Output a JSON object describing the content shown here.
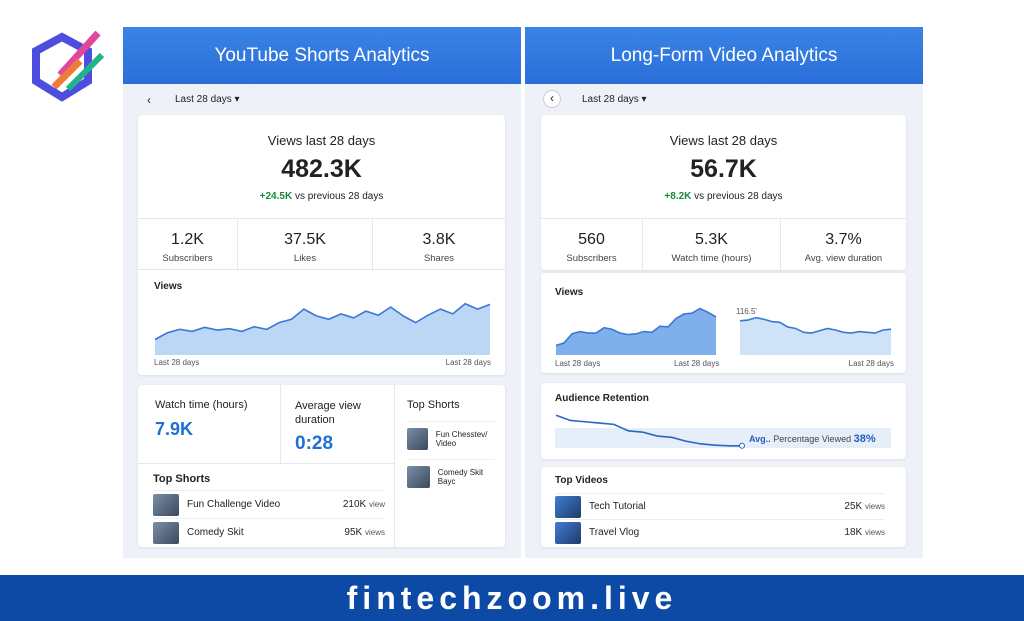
{
  "brand": {
    "site": "fintechzoom.live"
  },
  "shorts": {
    "title": "YouTube Shorts Analytics",
    "range": "Last 28 days",
    "views_label": "Views last 28 days",
    "views": "482.3K",
    "delta": "+24.5K",
    "delta_suffix": "vs previous 28 days",
    "stats": [
      {
        "value": "1.2K",
        "label": "Subscribers"
      },
      {
        "value": "37.5K",
        "label": "Likes"
      },
      {
        "value": "3.8K",
        "label": "Shares"
      }
    ],
    "chart": {
      "label": "Views",
      "x_start": "Last 28 days",
      "x_end": "Last 28 days",
      "values": [
        2,
        3,
        3.5,
        3.2,
        3.8,
        3.4,
        3.6,
        3.2,
        3.9,
        3.5,
        4.5,
        5,
        6.5,
        5.5,
        5,
        5.8,
        5.2,
        6.2,
        5.6,
        6.8,
        5.5,
        4.5,
        5.6,
        6.5,
        5.8,
        7.3,
        6.5,
        7.2
      ]
    },
    "watch_label": "Watch time (hours)",
    "watch": "7.9K",
    "avg_label": "Average view duration",
    "avg": "0:28",
    "top_side_title": "Top Shorts",
    "top_side": [
      "Fun Chesstev/ Video",
      "Comedy Skit Bayc"
    ],
    "top_title": "Top Shorts",
    "top": [
      {
        "title": "Fun Challenge Video",
        "views": "210K",
        "unit": "view"
      },
      {
        "title": "Comedy Skit",
        "views": "95K",
        "unit": "views"
      }
    ]
  },
  "long": {
    "title": "Long-Form Video Analytics",
    "range": "Last 28 days",
    "views_label": "Views last 28 days",
    "views": "56.7K",
    "delta": "+8.2K",
    "delta_suffix": "vs previous 28 days",
    "stats": [
      {
        "value": "560",
        "label": "Subscribers"
      },
      {
        "value": "5.3K",
        "label": "Watch time (hours)"
      },
      {
        "value": "3.7%",
        "label": "Avg. view duration"
      }
    ],
    "chart": {
      "label": "Views",
      "x_start": "Last 28 days",
      "x_mid": "Last 28 days",
      "x_end": "Last 28 days",
      "annotation": "116.5'",
      "left": [
        1,
        1.3,
        2.5,
        2.8,
        2.6,
        2.6,
        3.3,
        3.1,
        2.6,
        2.4,
        2.5,
        2.8,
        2.7,
        3.5,
        3.4,
        4.5,
        5.1,
        5.2,
        5.8,
        5.3,
        4.7
      ],
      "right": [
        4.2,
        4.3,
        4.6,
        4.4,
        4.1,
        4,
        3.4,
        3.2,
        2.7,
        2.6,
        2.9,
        3.2,
        3,
        2.7,
        2.6,
        2.8,
        2.7,
        2.6,
        3,
        3.1
      ]
    },
    "retention": {
      "label": "Audience Retention",
      "avg": "Avg..",
      "text": "Percentage Viewed",
      "pct": "38%",
      "values": [
        100,
        92,
        90,
        88,
        86,
        76,
        74,
        68,
        66,
        60,
        56,
        54,
        53,
        53
      ]
    },
    "top_title": "Top Videos",
    "top": [
      {
        "title": "Tech Tutorial",
        "views": "25K",
        "unit": "views"
      },
      {
        "title": "Travel Vlog",
        "views": "18K",
        "unit": "views"
      }
    ]
  }
}
